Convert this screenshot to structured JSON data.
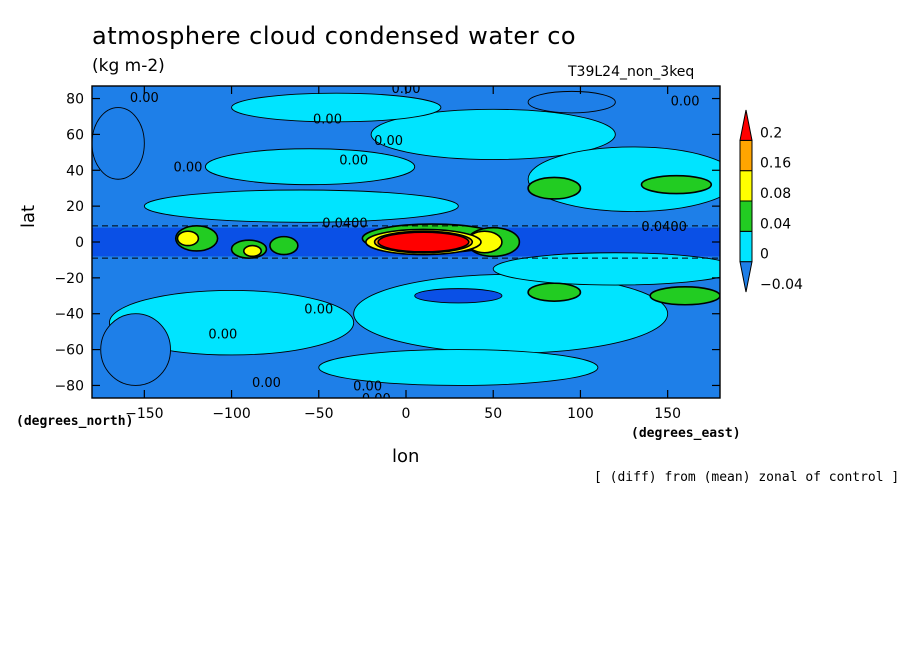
{
  "chart_data": {
    "type": "heatmap",
    "title": "atmosphere cloud condensed water co",
    "units": "(kg m-2)",
    "run_label": "T39L24_non_3keq",
    "xlabel": "lon",
    "ylabel": "lat",
    "x_unit_label": "(degrees_east)",
    "y_unit_label": "(degrees_north)",
    "xlim": [
      -180,
      180
    ],
    "ylim": [
      -87,
      87
    ],
    "x_ticks": [
      -150,
      -100,
      -50,
      0,
      50,
      100,
      150
    ],
    "y_ticks": [
      -80,
      -60,
      -40,
      -20,
      0,
      20,
      40,
      60,
      80
    ],
    "colorbar": {
      "levels": [
        -0.04,
        0,
        0.04,
        0.08,
        0.16,
        0.2
      ],
      "level_labels": [
        "−0.04",
        "0",
        "0.04",
        "0.08",
        "0.16",
        "0.2"
      ],
      "colors": [
        "#1e7fe8",
        "#00e4ff",
        "#22cc22",
        "#ffff00",
        "#ffa500",
        "#ff0000"
      ],
      "below_color": "#1e7fe8",
      "deep_color": "#0a50e6"
    },
    "contour_labels": [
      {
        "text": "0.00",
        "lon": 0,
        "lat": 86
      },
      {
        "text": "0.00",
        "lon": -150,
        "lat": 81
      },
      {
        "text": "0.00",
        "lon": 160,
        "lat": 79
      },
      {
        "text": "0.00",
        "lon": -45,
        "lat": 69
      },
      {
        "text": "0.00",
        "lon": -10,
        "lat": 57
      },
      {
        "text": "0.00",
        "lon": -125,
        "lat": 42
      },
      {
        "text": "0.00",
        "lon": -30,
        "lat": 46
      },
      {
        "text": "0.0400",
        "lon": -35,
        "lat": 11
      },
      {
        "text": "0.0400",
        "lon": 148,
        "lat": 9
      },
      {
        "text": "0.00",
        "lon": -50,
        "lat": -37
      },
      {
        "text": "0.00",
        "lon": -105,
        "lat": -51
      },
      {
        "text": "0.00",
        "lon": -80,
        "lat": -78
      },
      {
        "text": "0.00",
        "lon": -22,
        "lat": -80
      },
      {
        "text": "0.00",
        "lon": -17,
        "lat": -87
      }
    ],
    "regions": [
      {
        "level": 0,
        "cx": -55,
        "cy": 42,
        "rx": 60,
        "ry": 10
      },
      {
        "level": 0,
        "cx": 50,
        "cy": 60,
        "rx": 70,
        "ry": 14
      },
      {
        "level": 0,
        "cx": 130,
        "cy": 35,
        "rx": 60,
        "ry": 18
      },
      {
        "level": 0,
        "cx": -100,
        "cy": -45,
        "rx": 70,
        "ry": 18
      },
      {
        "level": 0,
        "cx": 60,
        "cy": -40,
        "rx": 90,
        "ry": 22
      },
      {
        "level": 0,
        "cx": -40,
        "cy": 75,
        "rx": 60,
        "ry": 8
      },
      {
        "level": 0,
        "cx": 30,
        "cy": -70,
        "rx": 80,
        "ry": 10
      },
      {
        "level": 0,
        "cx": -60,
        "cy": 20,
        "rx": 90,
        "ry": 9
      },
      {
        "level": 0,
        "cx": 120,
        "cy": -15,
        "rx": 70,
        "ry": 9
      },
      {
        "level": -1,
        "cx": -165,
        "cy": 55,
        "rx": 15,
        "ry": 20
      },
      {
        "level": -1,
        "cx": 95,
        "cy": 78,
        "rx": 25,
        "ry": 6
      },
      {
        "level": -1,
        "cx": -155,
        "cy": -60,
        "rx": 20,
        "ry": 20
      },
      {
        "level": -2,
        "cx": 30,
        "cy": -30,
        "rx": 25,
        "ry": 4
      },
      {
        "level": 1,
        "cx": 85,
        "cy": 30,
        "rx": 15,
        "ry": 6
      },
      {
        "level": 1,
        "cx": 155,
        "cy": 32,
        "rx": 20,
        "ry": 5
      },
      {
        "level": 1,
        "cx": 85,
        "cy": -28,
        "rx": 15,
        "ry": 5
      },
      {
        "level": 1,
        "cx": 160,
        "cy": -30,
        "rx": 20,
        "ry": 5
      },
      {
        "level": 1,
        "cx": 15,
        "cy": 2,
        "rx": 40,
        "ry": 8
      },
      {
        "level": 1,
        "cx": 50,
        "cy": 0,
        "rx": 15,
        "ry": 8
      },
      {
        "level": 1,
        "cx": -120,
        "cy": 2,
        "rx": 12,
        "ry": 7
      },
      {
        "level": 1,
        "cx": -90,
        "cy": -4,
        "rx": 10,
        "ry": 5
      },
      {
        "level": 1,
        "cx": -70,
        "cy": -2,
        "rx": 8,
        "ry": 5
      },
      {
        "level": 2,
        "cx": 45,
        "cy": 0,
        "rx": 10,
        "ry": 6
      },
      {
        "level": 2,
        "cx": -125,
        "cy": 2,
        "rx": 6,
        "ry": 4
      },
      {
        "level": 2,
        "cx": -88,
        "cy": -5,
        "rx": 5,
        "ry": 3
      },
      {
        "level": 2,
        "cx": 10,
        "cy": 0,
        "rx": 33,
        "ry": 7
      },
      {
        "level": 3,
        "cx": 10,
        "cy": 0,
        "rx": 28,
        "ry": 6
      },
      {
        "level": 4,
        "cx": 10,
        "cy": 0,
        "rx": 26,
        "ry": 5.5
      }
    ]
  }
}
